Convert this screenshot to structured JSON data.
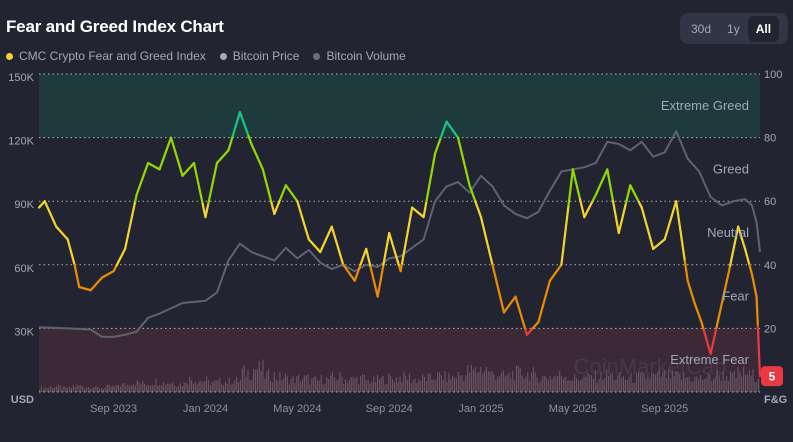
{
  "header": {
    "title": "Fear and Greed Index Chart"
  },
  "range_buttons": [
    {
      "label": "30d",
      "active": false
    },
    {
      "label": "1y",
      "active": false
    },
    {
      "label": "All",
      "active": true
    }
  ],
  "legend": [
    {
      "label": "CMC Crypto Fear and Greed Index",
      "color": "#f3d42f"
    },
    {
      "label": "Bitcoin Price",
      "color": "#a6a9b8"
    },
    {
      "label": "Bitcoin Volume",
      "color": "#6b6e80"
    }
  ],
  "watermark": "CoinMarketCap",
  "chart_data": {
    "type": "line",
    "title": "Fear and Greed Index Chart",
    "x_unit": "months since Jun 2023",
    "xlim": [
      -0.25,
      31.15
    ],
    "x_ticks": [
      {
        "t": 3,
        "label": "Sep 2023"
      },
      {
        "t": 7,
        "label": "Jan 2024"
      },
      {
        "t": 11,
        "label": "May 2024"
      },
      {
        "t": 15,
        "label": "Sep 2024"
      },
      {
        "t": 19,
        "label": "Jan 2025"
      },
      {
        "t": 23,
        "label": "May 2025"
      },
      {
        "t": 27,
        "label": "Sep 2025"
      }
    ],
    "left_axis": {
      "label": "USD",
      "ylim": [
        0,
        150000
      ],
      "ticks": [
        {
          "v": 30000,
          "label": "30K"
        },
        {
          "v": 60000,
          "label": "60K"
        },
        {
          "v": 90000,
          "label": "90K"
        },
        {
          "v": 120000,
          "label": "120K"
        },
        {
          "v": 150000,
          "label": "150K"
        }
      ]
    },
    "right_axis": {
      "label": "F&G",
      "ylim": [
        0,
        100
      ],
      "ticks": [
        {
          "v": 20,
          "label": "20"
        },
        {
          "v": 40,
          "label": "40"
        },
        {
          "v": 60,
          "label": "60"
        },
        {
          "v": 80,
          "label": "80"
        },
        {
          "v": 100,
          "label": "100"
        }
      ]
    },
    "zones": [
      {
        "label": "Extreme Greed",
        "from": 80,
        "to": 100,
        "color": "#1f3a3d"
      },
      {
        "label": "Greed",
        "from": 60,
        "to": 80
      },
      {
        "label": "Neutral",
        "from": 40,
        "to": 60
      },
      {
        "label": "Fear",
        "from": 20,
        "to": 40
      },
      {
        "label": "Extreme Fear",
        "from": 0,
        "to": 20,
        "color": "#3b2a35"
      }
    ],
    "level_colors": {
      "extreme_fear": "#ea3943",
      "fear": "#ea8c00",
      "neutral": "#f3d42f",
      "greed": "#93d900",
      "extreme_greed": "#16c784"
    },
    "current_value": {
      "label": "5",
      "value": 5
    },
    "series": [
      {
        "name": "CMC Crypto Fear and Greed Index",
        "axis": "right",
        "points": [
          [
            -0.25,
            58
          ],
          [
            0,
            60
          ],
          [
            0.5,
            52
          ],
          [
            1,
            48
          ],
          [
            1.3,
            40
          ],
          [
            1.5,
            33
          ],
          [
            2,
            32
          ],
          [
            2.5,
            36
          ],
          [
            3,
            38
          ],
          [
            3.5,
            45
          ],
          [
            4,
            62
          ],
          [
            4.5,
            72
          ],
          [
            5,
            70
          ],
          [
            5.5,
            80
          ],
          [
            6,
            68
          ],
          [
            6.5,
            72
          ],
          [
            7,
            55
          ],
          [
            7.5,
            72
          ],
          [
            8,
            76
          ],
          [
            8.5,
            88
          ],
          [
            9,
            78
          ],
          [
            9.5,
            70
          ],
          [
            10,
            56
          ],
          [
            10.5,
            65
          ],
          [
            11,
            60
          ],
          [
            11.5,
            48
          ],
          [
            12,
            44
          ],
          [
            12.5,
            52
          ],
          [
            13,
            40
          ],
          [
            13.5,
            35
          ],
          [
            14,
            45
          ],
          [
            14.5,
            30
          ],
          [
            15,
            50
          ],
          [
            15.5,
            38
          ],
          [
            16,
            58
          ],
          [
            16.5,
            55
          ],
          [
            17,
            75
          ],
          [
            17.5,
            85
          ],
          [
            18,
            80
          ],
          [
            18.5,
            65
          ],
          [
            19,
            55
          ],
          [
            19.5,
            40
          ],
          [
            20,
            25
          ],
          [
            20.5,
            30
          ],
          [
            21,
            18
          ],
          [
            21.5,
            22
          ],
          [
            22,
            35
          ],
          [
            22.5,
            40
          ],
          [
            23,
            70
          ],
          [
            23.5,
            55
          ],
          [
            24,
            62
          ],
          [
            24.5,
            70
          ],
          [
            25,
            50
          ],
          [
            25.5,
            65
          ],
          [
            26,
            58
          ],
          [
            26.5,
            45
          ],
          [
            27,
            48
          ],
          [
            27.5,
            60
          ],
          [
            28,
            35
          ],
          [
            28.3,
            28
          ],
          [
            28.6,
            22
          ],
          [
            29,
            12
          ],
          [
            29.4,
            25
          ],
          [
            29.8,
            38
          ],
          [
            30.2,
            52
          ],
          [
            30.5,
            45
          ],
          [
            30.8,
            37
          ],
          [
            31,
            30
          ],
          [
            31.15,
            5
          ]
        ]
      },
      {
        "name": "Bitcoin Price",
        "axis": "left",
        "points": [
          [
            -0.25,
            30500
          ],
          [
            1,
            30000
          ],
          [
            2,
            29500
          ],
          [
            2.5,
            26000
          ],
          [
            3,
            26000
          ],
          [
            3.5,
            27000
          ],
          [
            4,
            28500
          ],
          [
            4.5,
            35000
          ],
          [
            5,
            37000
          ],
          [
            6,
            42000
          ],
          [
            7,
            43000
          ],
          [
            7.5,
            47000
          ],
          [
            8,
            62000
          ],
          [
            8.5,
            70000
          ],
          [
            9,
            66000
          ],
          [
            9.5,
            64000
          ],
          [
            10,
            62000
          ],
          [
            10.5,
            68000
          ],
          [
            11,
            63000
          ],
          [
            11.5,
            67000
          ],
          [
            12,
            61000
          ],
          [
            12.5,
            58000
          ],
          [
            13,
            60000
          ],
          [
            13.5,
            57000
          ],
          [
            14,
            60000
          ],
          [
            14.5,
            59000
          ],
          [
            15,
            63000
          ],
          [
            15.5,
            64000
          ],
          [
            16,
            68000
          ],
          [
            16.5,
            72000
          ],
          [
            17,
            90000
          ],
          [
            17.5,
            97000
          ],
          [
            18,
            99000
          ],
          [
            18.5,
            94000
          ],
          [
            19,
            102000
          ],
          [
            19.5,
            97000
          ],
          [
            20,
            88000
          ],
          [
            20.5,
            84000
          ],
          [
            21,
            82000
          ],
          [
            21.5,
            85000
          ],
          [
            22,
            95000
          ],
          [
            22.5,
            104000
          ],
          [
            23,
            105000
          ],
          [
            23.5,
            106000
          ],
          [
            24,
            108000
          ],
          [
            24.5,
            118000
          ],
          [
            25,
            117000
          ],
          [
            25.5,
            114000
          ],
          [
            26,
            118000
          ],
          [
            26.5,
            111000
          ],
          [
            27,
            113000
          ],
          [
            27.5,
            123000
          ],
          [
            28,
            110000
          ],
          [
            28.5,
            104000
          ],
          [
            29,
            92000
          ],
          [
            29.5,
            88000
          ],
          [
            30,
            90000
          ],
          [
            30.5,
            91000
          ],
          [
            30.8,
            88000
          ],
          [
            31,
            80000
          ],
          [
            31.15,
            66000
          ]
        ]
      },
      {
        "name": "Bitcoin Volume",
        "axis": "left",
        "relative_values": [
          4,
          5,
          4,
          6,
          5,
          4,
          5,
          7,
          9,
          8,
          10,
          9,
          8,
          12,
          11,
          9,
          10,
          11,
          19,
          22,
          16,
          14,
          12,
          13,
          11,
          12,
          14,
          12,
          13,
          11,
          12,
          13,
          14,
          12,
          13,
          15,
          14,
          16,
          20,
          22,
          17,
          15,
          18,
          17,
          14,
          15,
          16,
          13,
          14,
          15,
          16,
          14,
          13,
          14,
          15,
          16,
          15,
          14,
          13,
          14,
          16,
          15,
          18,
          16
        ]
      }
    ]
  }
}
